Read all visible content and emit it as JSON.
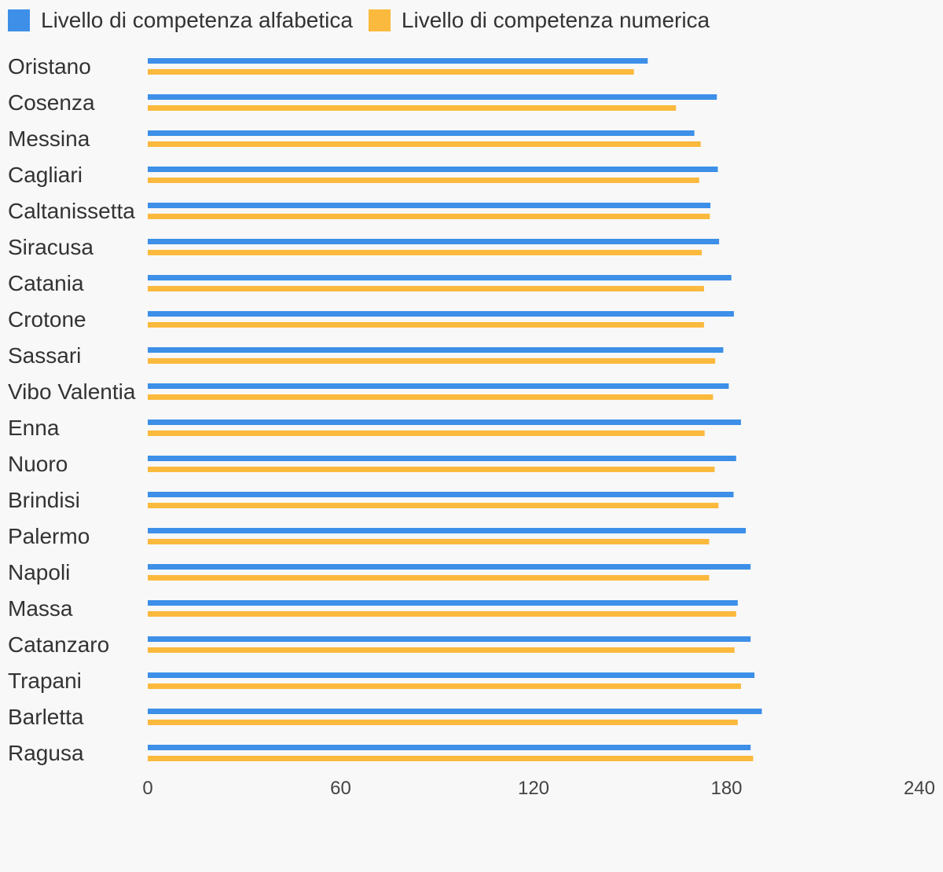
{
  "chart_data": {
    "type": "bar",
    "orientation": "horizontal",
    "categories": [
      "Oristano",
      "Cosenza",
      "Messina",
      "Cagliari",
      "Caltanissetta",
      "Siracusa",
      "Catania",
      "Crotone",
      "Sassari",
      "Vibo Valentia",
      "Enna",
      "Nuoro",
      "Brindisi",
      "Palermo",
      "Napoli",
      "Massa",
      "Catanzaro",
      "Trapani",
      "Barletta",
      "Ragusa"
    ],
    "series": [
      {
        "name": "Livello di competenza alfabetica",
        "color": "#3d8fe8",
        "values": [
          155.5,
          177,
          170,
          177.3,
          175,
          177.7,
          181.5,
          182.3,
          179,
          180.7,
          184.5,
          183,
          182.2,
          186,
          187.5,
          183.5,
          187.5,
          188.7,
          191,
          187.5
        ]
      },
      {
        "name": "Livello di competenza numerica",
        "color": "#fbb93d",
        "values": [
          151.2,
          164.3,
          172,
          171.5,
          174.8,
          172.3,
          173,
          173,
          176.5,
          175.8,
          173.2,
          176.3,
          177.5,
          174.6,
          174.6,
          183,
          182.5,
          184.5,
          183.5,
          188.3
        ]
      }
    ],
    "xlim": [
      0,
      240
    ],
    "xticks": [
      "0",
      "60",
      "120",
      "180",
      "240"
    ],
    "legend_position": "top-left",
    "grid": false
  }
}
